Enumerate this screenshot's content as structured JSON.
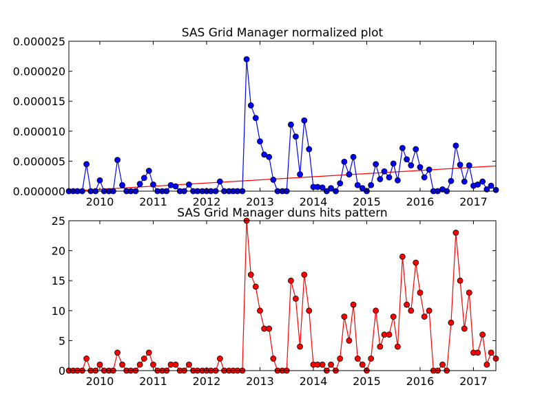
{
  "chart_data": [
    {
      "type": "line",
      "title": "SAS Grid Manager normalized plot",
      "xlabel": "",
      "ylabel": "",
      "xlim": [
        2009.42,
        2017.42
      ],
      "ylim": [
        0,
        2.5e-05
      ],
      "xticks": [
        2010,
        2011,
        2012,
        2013,
        2014,
        2015,
        2016,
        2017
      ],
      "xtick_labels": [
        "2010",
        "2011",
        "2012",
        "2013",
        "2014",
        "2015",
        "2016",
        "2017"
      ],
      "yticks": [
        0,
        5e-06,
        1e-05,
        1.5e-05,
        2e-05,
        2.5e-05
      ],
      "ytick_labels": [
        "0.000000",
        "0.000005",
        "0.000010",
        "0.000015",
        "0.000020",
        "0.000025"
      ],
      "grid": false,
      "series": [
        {
          "name": "",
          "color": "#0000ff",
          "marker": "circle",
          "x": [
            2009.42,
            2009.5,
            2009.58,
            2009.67,
            2009.75,
            2009.83,
            2009.92,
            2010.0,
            2010.08,
            2010.17,
            2010.25,
            2010.33,
            2010.42,
            2010.5,
            2010.58,
            2010.67,
            2010.75,
            2010.83,
            2010.92,
            2011.0,
            2011.08,
            2011.17,
            2011.25,
            2011.33,
            2011.42,
            2011.5,
            2011.58,
            2011.67,
            2011.75,
            2011.83,
            2011.92,
            2012.0,
            2012.08,
            2012.17,
            2012.25,
            2012.33,
            2012.42,
            2012.5,
            2012.58,
            2012.67,
            2012.75,
            2012.83,
            2012.92,
            2013.0,
            2013.08,
            2013.17,
            2013.25,
            2013.33,
            2013.42,
            2013.5,
            2013.58,
            2013.67,
            2013.75,
            2013.83,
            2013.92,
            2014.0,
            2014.08,
            2014.17,
            2014.25,
            2014.33,
            2014.42,
            2014.5,
            2014.58,
            2014.67,
            2014.75,
            2014.83,
            2014.92,
            2015.0,
            2015.08,
            2015.17,
            2015.25,
            2015.33,
            2015.42,
            2015.5,
            2015.58,
            2015.67,
            2015.75,
            2015.83,
            2015.92,
            2016.0,
            2016.08,
            2016.17,
            2016.25,
            2016.33,
            2016.42,
            2016.5,
            2016.58,
            2016.67,
            2016.75,
            2016.83,
            2016.92,
            2017.0,
            2017.08,
            2017.17,
            2017.25,
            2017.33,
            2017.42
          ],
          "y": [
            0,
            0,
            0,
            0,
            4.5e-06,
            0,
            0,
            1.8e-06,
            0,
            0,
            0,
            5.2e-06,
            1e-06,
            0,
            0,
            0,
            1.2e-06,
            2.2e-06,
            3.4e-06,
            1.1e-06,
            0,
            0,
            0,
            1e-06,
            8e-07,
            0,
            0,
            1.1e-06,
            0,
            0,
            0,
            0,
            0,
            0,
            1.6e-06,
            0,
            0,
            0,
            0,
            0,
            2.2e-05,
            1.43e-05,
            1.22e-05,
            8.3e-06,
            6.1e-06,
            5.7e-06,
            1.9e-06,
            0,
            0,
            0,
            1.11e-05,
            9.1e-06,
            2.8e-06,
            1.18e-05,
            7e-06,
            7e-07,
            7e-07,
            6e-07,
            0,
            5e-07,
            0,
            1.3e-06,
            4.9e-06,
            2.8e-06,
            5.7e-06,
            1e-06,
            5e-07,
            0,
            1e-06,
            4.5e-06,
            2e-06,
            3.3e-06,
            2.3e-06,
            4.6e-06,
            1.8e-06,
            7.2e-06,
            5.3e-06,
            4.3e-06,
            7e-06,
            4e-06,
            2.3e-06,
            3.6e-06,
            0,
            0,
            3e-07,
            0,
            1.7e-06,
            7.6e-06,
            4.4e-06,
            1.6e-06,
            4.3e-06,
            9e-07,
            1.1e-06,
            1.6e-06,
            3e-07,
            9e-07,
            2e-07
          ]
        }
      ],
      "trendline": {
        "color": "#ff0000",
        "x": [
          2009.42,
          2017.42
        ],
        "y": [
          0,
          4.2e-06
        ]
      }
    },
    {
      "type": "line",
      "title": "SAS Grid Manager duns hits pattern",
      "xlabel": "",
      "ylabel": "",
      "xlim": [
        2009.42,
        2017.42
      ],
      "ylim": [
        0,
        25
      ],
      "xticks": [
        2010,
        2011,
        2012,
        2013,
        2014,
        2015,
        2016,
        2017
      ],
      "xtick_labels": [
        "2010",
        "2011",
        "2012",
        "2013",
        "2014",
        "2015",
        "2016",
        "2017"
      ],
      "yticks": [
        0,
        5,
        10,
        15,
        20,
        25
      ],
      "ytick_labels": [
        "0",
        "5",
        "10",
        "15",
        "20",
        "25"
      ],
      "grid": false,
      "series": [
        {
          "name": "",
          "color": "#ff0000",
          "marker": "circle",
          "x": [
            2009.42,
            2009.5,
            2009.58,
            2009.67,
            2009.75,
            2009.83,
            2009.92,
            2010.0,
            2010.08,
            2010.17,
            2010.25,
            2010.33,
            2010.42,
            2010.5,
            2010.58,
            2010.67,
            2010.75,
            2010.83,
            2010.92,
            2011.0,
            2011.08,
            2011.17,
            2011.25,
            2011.33,
            2011.42,
            2011.5,
            2011.58,
            2011.67,
            2011.75,
            2011.83,
            2011.92,
            2012.0,
            2012.08,
            2012.17,
            2012.25,
            2012.33,
            2012.42,
            2012.5,
            2012.58,
            2012.67,
            2012.75,
            2012.83,
            2012.92,
            2013.0,
            2013.08,
            2013.17,
            2013.25,
            2013.33,
            2013.42,
            2013.5,
            2013.58,
            2013.67,
            2013.75,
            2013.83,
            2013.92,
            2014.0,
            2014.08,
            2014.17,
            2014.25,
            2014.33,
            2014.42,
            2014.5,
            2014.58,
            2014.67,
            2014.75,
            2014.83,
            2014.92,
            2015.0,
            2015.08,
            2015.17,
            2015.25,
            2015.33,
            2015.42,
            2015.5,
            2015.58,
            2015.67,
            2015.75,
            2015.83,
            2015.92,
            2016.0,
            2016.08,
            2016.17,
            2016.25,
            2016.33,
            2016.42,
            2016.5,
            2016.58,
            2016.67,
            2016.75,
            2016.83,
            2016.92,
            2017.0,
            2017.08,
            2017.17,
            2017.25,
            2017.33,
            2017.42
          ],
          "y": [
            0,
            0,
            0,
            0,
            2,
            0,
            0,
            1,
            0,
            0,
            0,
            3,
            1,
            0,
            0,
            0,
            1,
            2,
            3,
            1,
            0,
            0,
            0,
            1,
            1,
            0,
            0,
            1,
            0,
            0,
            0,
            0,
            0,
            0,
            2,
            0,
            0,
            0,
            0,
            0,
            25,
            16,
            14,
            10,
            7,
            7,
            2,
            0,
            0,
            0,
            15,
            12,
            4,
            16,
            10,
            1,
            1,
            1,
            0,
            1,
            0,
            2,
            9,
            5,
            11,
            2,
            1,
            0,
            2,
            10,
            4,
            6,
            6,
            9,
            4,
            19,
            11,
            10,
            18,
            13,
            9,
            10,
            0,
            0,
            1,
            0,
            8,
            23,
            15,
            7,
            13,
            3,
            3,
            6,
            1,
            3,
            2
          ]
        }
      ]
    }
  ]
}
